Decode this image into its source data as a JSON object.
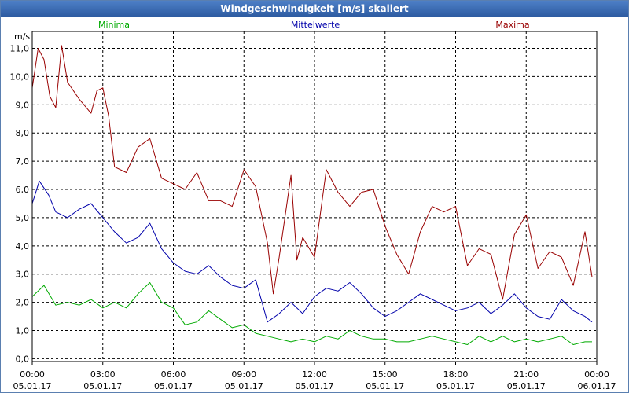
{
  "chart_data": {
    "type": "line",
    "title": "Windgeschwindigkeit [m/s] skaliert",
    "ylabel": "m/s",
    "xlabel": "",
    "ylim": [
      -0.1,
      11.6
    ],
    "xlim": [
      0,
      24
    ],
    "y_ticks": [
      "0,0",
      "1,0",
      "2,0",
      "3,0",
      "4,0",
      "5,0",
      "6,0",
      "7,0",
      "8,0",
      "9,0",
      "10,0",
      "11,0"
    ],
    "x_ticks": [
      {
        "time": "00:00",
        "date": "05.01.17"
      },
      {
        "time": "03:00",
        "date": "05.01.17"
      },
      {
        "time": "06:00",
        "date": "05.01.17"
      },
      {
        "time": "09:00",
        "date": "05.01.17"
      },
      {
        "time": "12:00",
        "date": "05.01.17"
      },
      {
        "time": "15:00",
        "date": "05.01.17"
      },
      {
        "time": "18:00",
        "date": "05.01.17"
      },
      {
        "time": "21:00",
        "date": "05.01.17"
      },
      {
        "time": "00:00",
        "date": "06.01.17"
      }
    ],
    "grid": true,
    "legend_position": "top",
    "series": [
      {
        "name": "Minima",
        "color": "#00aa00",
        "x": [
          0,
          0.5,
          1,
          1.5,
          2,
          2.5,
          3,
          3.5,
          4,
          4.5,
          5,
          5.5,
          6,
          6.5,
          7,
          7.5,
          8,
          8.5,
          9,
          9.5,
          10,
          10.5,
          11,
          11.5,
          12,
          12.5,
          13,
          13.5,
          14,
          14.5,
          15,
          15.5,
          16,
          16.5,
          17,
          17.5,
          18,
          18.5,
          19,
          19.5,
          20,
          20.5,
          21,
          21.5,
          22,
          22.5,
          23,
          23.5,
          23.8
        ],
        "values": [
          2.2,
          2.6,
          1.9,
          2.0,
          1.9,
          2.1,
          1.8,
          2.0,
          1.8,
          2.3,
          2.7,
          2.0,
          1.8,
          1.2,
          1.3,
          1.7,
          1.4,
          1.1,
          1.2,
          0.9,
          0.8,
          0.7,
          0.6,
          0.7,
          0.6,
          0.8,
          0.7,
          1.0,
          0.8,
          0.7,
          0.7,
          0.6,
          0.6,
          0.7,
          0.8,
          0.7,
          0.6,
          0.5,
          0.8,
          0.6,
          0.8,
          0.6,
          0.7,
          0.6,
          0.7,
          0.8,
          0.5,
          0.6,
          0.6
        ]
      },
      {
        "name": "Mittelwerte",
        "color": "#0000aa",
        "x": [
          0,
          0.3,
          0.7,
          1,
          1.5,
          2,
          2.5,
          3,
          3.5,
          4,
          4.5,
          5,
          5.5,
          6,
          6.5,
          7,
          7.5,
          8,
          8.5,
          9,
          9.5,
          10,
          10.5,
          11,
          11.5,
          12,
          12.5,
          13,
          13.5,
          14,
          14.5,
          15,
          15.5,
          16,
          16.5,
          17,
          17.5,
          18,
          18.5,
          19,
          19.5,
          20,
          20.5,
          21,
          21.5,
          22,
          22.5,
          23,
          23.5,
          23.8
        ],
        "values": [
          5.5,
          6.3,
          5.8,
          5.2,
          5.0,
          5.3,
          5.5,
          5.0,
          4.5,
          4.1,
          4.3,
          4.8,
          3.9,
          3.4,
          3.1,
          3.0,
          3.3,
          2.9,
          2.6,
          2.5,
          2.8,
          1.3,
          1.6,
          2.0,
          1.6,
          2.2,
          2.5,
          2.4,
          2.7,
          2.3,
          1.8,
          1.5,
          1.7,
          2.0,
          2.3,
          2.1,
          1.9,
          1.7,
          1.8,
          2.0,
          1.6,
          1.9,
          2.3,
          1.8,
          1.5,
          1.4,
          2.1,
          1.7,
          1.5,
          1.3
        ]
      },
      {
        "name": "Maxima",
        "color": "#990000",
        "x": [
          0,
          0.25,
          0.5,
          0.75,
          1,
          1.25,
          1.5,
          2,
          2.5,
          2.75,
          3,
          3.25,
          3.5,
          4,
          4.5,
          5,
          5.5,
          6,
          6.5,
          7,
          7.5,
          8,
          8.5,
          9,
          9.5,
          10,
          10.25,
          10.5,
          11,
          11.25,
          11.5,
          12,
          12.5,
          13,
          13.5,
          14,
          14.5,
          15,
          15.5,
          16,
          16.5,
          17,
          17.5,
          18,
          18.5,
          19,
          19.5,
          20,
          20.5,
          21,
          21.5,
          22,
          22.5,
          23,
          23.5,
          23.8
        ],
        "values": [
          9.6,
          11.0,
          10.6,
          9.3,
          8.9,
          11.1,
          9.8,
          9.2,
          8.7,
          9.5,
          9.6,
          8.6,
          6.8,
          6.6,
          7.5,
          7.8,
          6.4,
          6.2,
          6.0,
          6.6,
          5.6,
          5.6,
          5.4,
          6.7,
          6.1,
          4.1,
          2.3,
          3.6,
          6.5,
          3.5,
          4.3,
          3.6,
          6.7,
          5.9,
          5.4,
          5.9,
          6.0,
          4.7,
          3.7,
          3.0,
          4.5,
          5.4,
          5.2,
          5.4,
          3.3,
          3.9,
          3.7,
          2.1,
          4.4,
          5.1,
          3.2,
          3.8,
          3.6,
          2.6,
          4.5,
          2.9
        ]
      }
    ]
  }
}
